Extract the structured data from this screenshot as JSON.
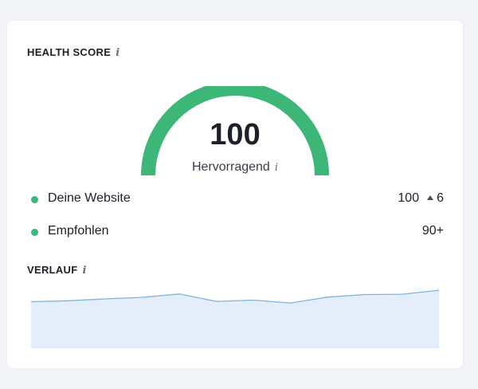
{
  "health": {
    "title": "HEALTH SCORE",
    "info_glyph": "i",
    "score": "100",
    "score_fraction": 1.0,
    "rating": "Hervorragend",
    "gauge_color": "#3cb777",
    "gauge_track_color": "#e6e8ed"
  },
  "legend": [
    {
      "label": "Deine Website",
      "value": "100",
      "delta": "6",
      "dot_color": "#3cb777"
    },
    {
      "label": "Empfohlen",
      "value": "90+",
      "dot_color": "#3cb777"
    }
  ],
  "history": {
    "title": "VERLAUF",
    "info_glyph": "i",
    "line_color": "#7eb4dd",
    "fill_color": "#e4eefa"
  },
  "chart_data": {
    "type": "area",
    "values": [
      100,
      100.6,
      101.8,
      102.8,
      105,
      100.2,
      101,
      99.2,
      103,
      104.6,
      104.8,
      107.4
    ],
    "ylim": [
      70,
      110
    ],
    "title": "",
    "xlabel": "",
    "ylabel": ""
  }
}
